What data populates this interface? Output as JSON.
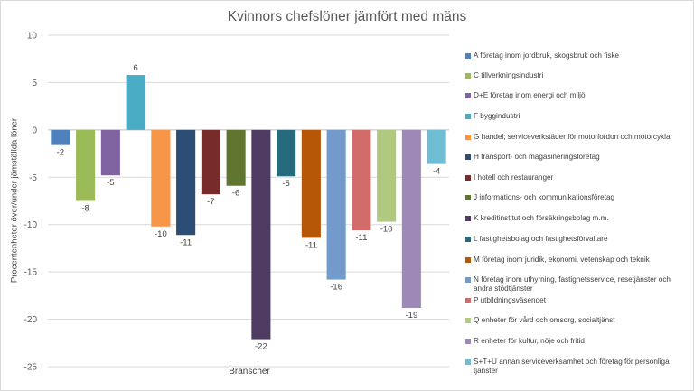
{
  "chart_data": {
    "type": "bar",
    "title": "Kvinnors chefslöner jämfört med mäns",
    "xlabel": "Branscher",
    "ylabel": "Procentenheter över/under jämställda löner",
    "ylim": [
      -25,
      10
    ],
    "yticks": [
      10,
      5,
      0,
      -5,
      -10,
      -15,
      -20,
      -25
    ],
    "grid": true,
    "legend_position": "right",
    "series": [
      {
        "name": "A företag inom jordbruk, skogsbruk och fiske",
        "value": -1.6,
        "label": "-2",
        "color": "#4f81bd"
      },
      {
        "name": "C tillverkningsindustri",
        "value": -7.5,
        "label": "-8",
        "color": "#9bbb59"
      },
      {
        "name": "D+E företag inom energi och miljö",
        "value": -4.8,
        "label": "-5",
        "color": "#8064a2"
      },
      {
        "name": "F byggindustri",
        "value": 5.8,
        "label": "6",
        "color": "#4bacc6"
      },
      {
        "name": "G handel; serviceverkstäder för motorfordon och motorcyklar",
        "value": -10.2,
        "label": "-10",
        "color": "#f79646"
      },
      {
        "name": "H transport- och magasineringsföretag",
        "value": -11.1,
        "label": "-11",
        "color": "#2c4d75"
      },
      {
        "name": "I hotell och restauranger",
        "value": -6.8,
        "label": "-7",
        "color": "#772c2a"
      },
      {
        "name": "J informations- och kommunikationsföretag",
        "value": -5.9,
        "label": "-6",
        "color": "#5f7530"
      },
      {
        "name": "K kreditinstitut och försäkringsbolag m.m.",
        "value": -22.1,
        "label": "-22",
        "color": "#4d3b62"
      },
      {
        "name": "L fastighetsbolag och fastighetsförvaltare",
        "value": -4.9,
        "label": "-5",
        "color": "#276a7c"
      },
      {
        "name": "M företag inom juridik, ekonomi, vetenskap och teknik",
        "value": -11.4,
        "label": "-11",
        "color": "#b65708"
      },
      {
        "name": "N företag inom uthyrning, fastighetsservice, resetjänster och andra stödtjänster",
        "value": -15.8,
        "label": "-16",
        "color": "#729aca"
      },
      {
        "name": "P utbildningsväsendet",
        "value": -10.6,
        "label": "-11",
        "color": "#d06c6a"
      },
      {
        "name": "Q enheter för vård och omsorg, socialtjänst",
        "value": -9.7,
        "label": "-10",
        "color": "#afca7f"
      },
      {
        "name": "R enheter för kultur, nöje och fritid",
        "value": -18.8,
        "label": "-19",
        "color": "#9e88b8"
      },
      {
        "name": "S+T+U annan serviceverksamhet och företag för personliga tjänster",
        "value": -3.6,
        "label": "-4",
        "color": "#6fbdd5"
      }
    ]
  }
}
